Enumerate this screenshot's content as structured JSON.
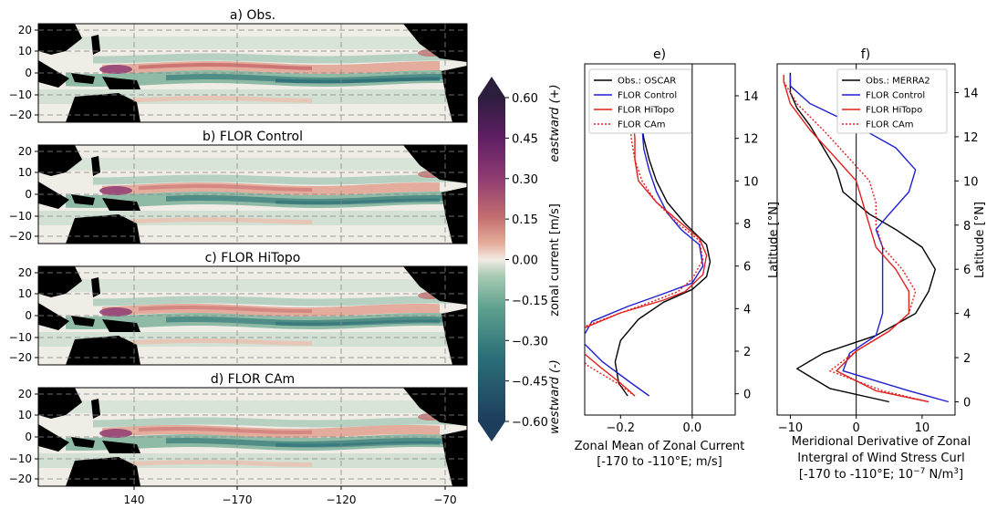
{
  "chart_data": [
    {
      "type": "heatmap",
      "panels": [
        {
          "title": "a) Obs."
        },
        {
          "title": "b) FLOR Control"
        },
        {
          "title": "c) FLOR HiTopo"
        },
        {
          "title": "d) FLOR CAm"
        }
      ],
      "y_ticks": [
        "20",
        "10",
        "0",
        "−10",
        "−20"
      ],
      "x_ticks": [
        "140",
        "−170",
        "−120",
        "−70"
      ],
      "colorbar": {
        "label": "zonal current [m/s]",
        "range": [
          -0.6,
          0.6
        ],
        "ticks": [
          "0.60",
          "0.45",
          "0.30",
          "0.15",
          "0.00",
          "−0.15",
          "−0.30",
          "−0.45",
          "−0.60"
        ],
        "label_top": "eastward (+)",
        "label_bottom": "westward (-)",
        "colors": [
          "#2d1e3e",
          "#5d1e63",
          "#8f3c73",
          "#c36f6f",
          "#e4ad9a",
          "#f3ebe4",
          "#a9cbb3",
          "#5ea08e",
          "#2b6f78",
          "#1d3d5c"
        ]
      }
    },
    {
      "type": "line",
      "title": "e)",
      "xlabel": "Zonal Mean of Zonal Current",
      "xlabel2": "[-170 to -110°E; m/s]",
      "ylabel": "Latitude [°N]",
      "xlim": [
        -0.3,
        0.12
      ],
      "ylim": [
        -1,
        15.5
      ],
      "x_ticks": [
        {
          "v": -0.2,
          "label": "−0.2"
        },
        {
          "v": 0.0,
          "label": "0.0"
        }
      ],
      "y_ticks": [
        "0",
        "2",
        "4",
        "6",
        "8",
        "10",
        "12",
        "14"
      ],
      "series": [
        {
          "name": "Obs.: OSCAR",
          "color": "#000000",
          "dash": "solid",
          "points": [
            [
              -0.18,
              -0.1
            ],
            [
              -0.205,
              0.5
            ],
            [
              -0.215,
              1.5
            ],
            [
              -0.2,
              2.5
            ],
            [
              -0.15,
              3.5
            ],
            [
              -0.08,
              4.3
            ],
            [
              0.0,
              4.9
            ],
            [
              0.04,
              5.5
            ],
            [
              0.05,
              6.2
            ],
            [
              0.04,
              7
            ],
            [
              -0.02,
              8
            ],
            [
              -0.07,
              9
            ],
            [
              -0.1,
              10
            ],
            [
              -0.12,
              11
            ],
            [
              -0.135,
              12
            ],
            [
              -0.145,
              13
            ],
            [
              -0.145,
              13.7
            ]
          ]
        },
        {
          "name": "FLOR Control",
          "color": "#1f1fd0",
          "dash": "solid",
          "points": [
            [
              -0.12,
              -0.1
            ],
            [
              -0.17,
              0.5
            ],
            [
              -0.25,
              1.5
            ],
            [
              -0.31,
              2.5
            ],
            [
              -0.28,
              3.4
            ],
            [
              -0.18,
              4.1
            ],
            [
              -0.08,
              4.7
            ],
            [
              0.0,
              5.2
            ],
            [
              0.03,
              6
            ],
            [
              0.02,
              7
            ],
            [
              -0.03,
              7.7
            ],
            [
              -0.07,
              8.5
            ],
            [
              -0.1,
              9.5
            ],
            [
              -0.12,
              10.5
            ],
            [
              -0.135,
              11.5
            ],
            [
              -0.14,
              12.5
            ],
            [
              -0.145,
              13.3
            ],
            [
              -0.15,
              13.6
            ]
          ]
        },
        {
          "name": "FLOR HiTopo",
          "color": "#e02020",
          "dash": "solid",
          "points": [
            [
              -0.16,
              -0.1
            ],
            [
              -0.2,
              0.5
            ],
            [
              -0.26,
              1.3
            ],
            [
              -0.33,
              2.3
            ],
            [
              -0.3,
              3.1
            ],
            [
              -0.2,
              3.8
            ],
            [
              -0.08,
              4.4
            ],
            [
              -0.02,
              4.8
            ],
            [
              0.03,
              5.6
            ],
            [
              0.04,
              6.5
            ],
            [
              0.02,
              7.3
            ],
            [
              -0.03,
              8
            ],
            [
              -0.1,
              9
            ],
            [
              -0.15,
              10
            ],
            [
              -0.16,
              11
            ],
            [
              -0.16,
              12
            ],
            [
              -0.165,
              13
            ],
            [
              -0.165,
              13.6
            ]
          ]
        },
        {
          "name": "FLOR CAm",
          "color": "#e02020",
          "dash": "dotted",
          "points": [
            [
              -0.16,
              -0.1
            ],
            [
              -0.21,
              0.5
            ],
            [
              -0.29,
              1.3
            ],
            [
              -0.35,
              2.3
            ],
            [
              -0.31,
              3.1
            ],
            [
              -0.2,
              3.8
            ],
            [
              -0.1,
              4.4
            ],
            [
              -0.04,
              4.8
            ],
            [
              0.0,
              5.4
            ],
            [
              0.03,
              6.3
            ],
            [
              0.02,
              7.2
            ],
            [
              -0.04,
              8
            ],
            [
              -0.1,
              9
            ],
            [
              -0.14,
              10
            ],
            [
              -0.16,
              11
            ],
            [
              -0.17,
              12
            ],
            [
              -0.175,
              13
            ],
            [
              -0.175,
              13.6
            ]
          ]
        }
      ]
    },
    {
      "type": "line",
      "title": "f)",
      "xlabel": "Meridional Derivative of Zonal",
      "xlabel2": "Intergral of Wind Stress Curl",
      "xlabel3": "[-170 to -110°E; 10",
      "xlabel3_sup": "−7",
      "xlabel3_end": " N/m",
      "xlabel3_sup2": "3",
      "xlabel3_close": "]",
      "ylabel": "Latitude [°N]",
      "xlim": [
        -12,
        15
      ],
      "ylim": [
        -0.6,
        15.3
      ],
      "x_ticks": [
        {
          "v": -10,
          "label": "−10"
        },
        {
          "v": 0,
          "label": "0"
        },
        {
          "v": 10,
          "label": "10"
        }
      ],
      "y_ticks": [
        "0",
        "2",
        "4",
        "6",
        "8",
        "10",
        "12",
        "14"
      ],
      "series": [
        {
          "name": "Obs.: MERRA2",
          "color": "#000000",
          "dash": "solid",
          "points": [
            [
              5,
              0
            ],
            [
              -4,
              0.6
            ],
            [
              -9,
              1.5
            ],
            [
              -5,
              2.2
            ],
            [
              3,
              3
            ],
            [
              9,
              4
            ],
            [
              11,
              5
            ],
            [
              12,
              6
            ],
            [
              10,
              7
            ],
            [
              6,
              7.8
            ],
            [
              2,
              8.5
            ],
            [
              -2,
              9.5
            ],
            [
              -3,
              10.5
            ],
            [
              -5,
              11.5
            ],
            [
              -7,
              12.5
            ],
            [
              -9,
              13.3
            ],
            [
              -10,
              14
            ],
            [
              -10,
              14.9
            ]
          ]
        },
        {
          "name": "FLOR Control",
          "color": "#1f1fd0",
          "dash": "solid",
          "points": [
            [
              14,
              0
            ],
            [
              8,
              0.5
            ],
            [
              -2,
              1.4
            ],
            [
              -1,
              2.2
            ],
            [
              3,
              3
            ],
            [
              4,
              4
            ],
            [
              4,
              5
            ],
            [
              4,
              6
            ],
            [
              4,
              7
            ],
            [
              3,
              7.8
            ],
            [
              5,
              8.5
            ],
            [
              8,
              9.5
            ],
            [
              9,
              10.5
            ],
            [
              6,
              11.5
            ],
            [
              0,
              12.5
            ],
            [
              -7,
              13.5
            ],
            [
              -10,
              14.3
            ],
            [
              -10,
              14.8
            ]
          ]
        },
        {
          "name": "FLOR HiTopo",
          "color": "#e02020",
          "dash": "solid",
          "points": [
            [
              11,
              0
            ],
            [
              3,
              0.5
            ],
            [
              -3,
              1.4
            ],
            [
              0,
              2.3
            ],
            [
              5,
              3.2
            ],
            [
              8,
              4
            ],
            [
              8,
              5
            ],
            [
              6,
              6
            ],
            [
              3,
              7
            ],
            [
              2,
              8
            ],
            [
              1,
              9
            ],
            [
              0,
              10
            ],
            [
              -3,
              11
            ],
            [
              -7,
              12.3
            ],
            [
              -10,
              13.5
            ],
            [
              -11,
              14.5
            ],
            [
              -11,
              14.8
            ]
          ]
        },
        {
          "name": "FLOR CAm",
          "color": "#e02020",
          "dash": "dotted",
          "points": [
            [
              11,
              0
            ],
            [
              4,
              0.5
            ],
            [
              -4,
              1.4
            ],
            [
              0,
              2.3
            ],
            [
              5,
              3.2
            ],
            [
              8,
              4
            ],
            [
              9,
              5
            ],
            [
              7,
              6
            ],
            [
              4,
              7
            ],
            [
              3,
              8
            ],
            [
              3,
              9
            ],
            [
              2,
              10
            ],
            [
              -1,
              11
            ],
            [
              -5,
              12.3
            ],
            [
              -9,
              13.5
            ],
            [
              -11,
              14.5
            ],
            [
              -11,
              14.8
            ]
          ]
        }
      ]
    }
  ]
}
